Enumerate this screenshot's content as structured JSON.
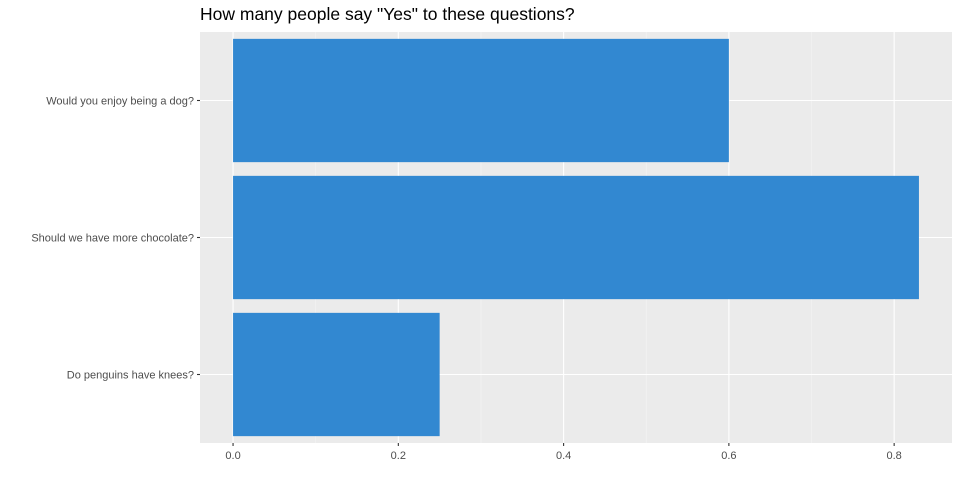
{
  "chart_data": {
    "type": "bar",
    "orientation": "horizontal",
    "title": "How many people say \"Yes\" to these questions?",
    "xlabel": "",
    "ylabel": "",
    "categories": [
      "Would you enjoy being a dog?",
      "Should we have more chocolate?",
      "Do penguins have knees?"
    ],
    "values": [
      0.6,
      0.83,
      0.25
    ],
    "xlim": [
      -0.04,
      0.87
    ],
    "xticks": [
      "0.0",
      "0.2",
      "0.4",
      "0.6",
      "0.8"
    ],
    "grid": true,
    "legend": "none",
    "colors": {
      "bar": "#3288d1",
      "panel": "#ebebeb",
      "grid_major": "#ffffff",
      "grid_minor": "#f5f5f5",
      "tick": "#333333"
    }
  }
}
